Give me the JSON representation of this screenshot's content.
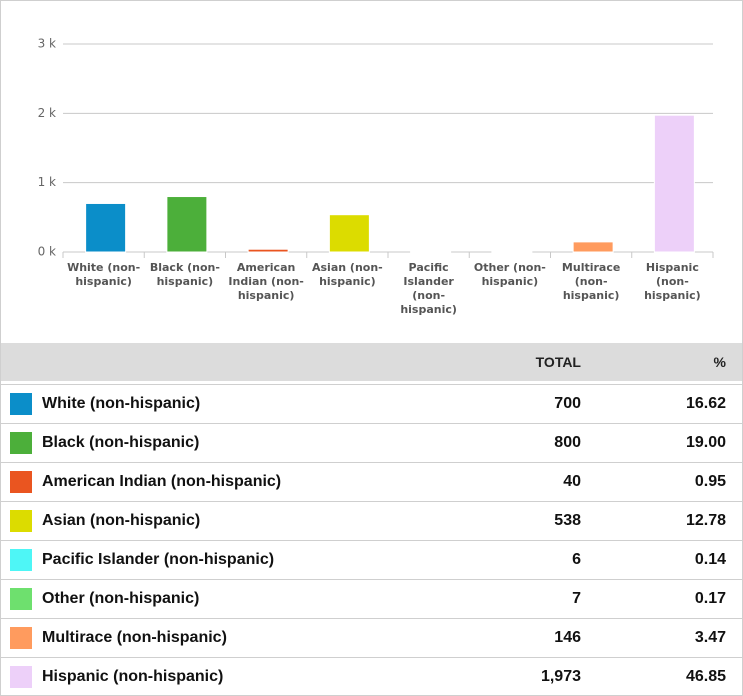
{
  "chart_data": {
    "type": "bar",
    "categories": [
      "White (non-hispanic)",
      "Black (non-hispanic)",
      "American Indian (non-hispanic)",
      "Asian (non-hispanic)",
      "Pacific Islander (non-hispanic)",
      "Other (non-hispanic)",
      "Multirace (non-hispanic)",
      "Hispanic (non-hispanic)"
    ],
    "values": [
      700,
      800,
      40,
      538,
      6,
      7,
      146,
      1973
    ],
    "colors": [
      "#0b8ec9",
      "#4caf3a",
      "#ea5520",
      "#dcdc00",
      "#4ef6f6",
      "#6ee06e",
      "#ff9b5e",
      "#edd0f9"
    ],
    "ylim": [
      0,
      3000
    ],
    "yticks": [
      {
        "value": 0,
        "label": "0 k"
      },
      {
        "value": 1000,
        "label": "1 k"
      },
      {
        "value": 2000,
        "label": "2 k"
      },
      {
        "value": 3000,
        "label": "3 k"
      }
    ],
    "grid": true
  },
  "table": {
    "headers": [
      "TOTAL",
      "%"
    ],
    "rows": [
      {
        "name": "White (non-hispanic)",
        "total": "700",
        "percent": "16.62"
      },
      {
        "name": "Black (non-hispanic)",
        "total": "800",
        "percent": "19.00"
      },
      {
        "name": "American Indian (non-hispanic)",
        "total": "40",
        "percent": "0.95"
      },
      {
        "name": "Asian (non-hispanic)",
        "total": "538",
        "percent": "12.78"
      },
      {
        "name": "Pacific Islander (non-hispanic)",
        "total": "6",
        "percent": "0.14"
      },
      {
        "name": "Other (non-hispanic)",
        "total": "7",
        "percent": "0.17"
      },
      {
        "name": "Multirace (non-hispanic)",
        "total": "146",
        "percent": "3.47"
      },
      {
        "name": "Hispanic (non-hispanic)",
        "total": "1,973",
        "percent": "46.85"
      }
    ]
  }
}
